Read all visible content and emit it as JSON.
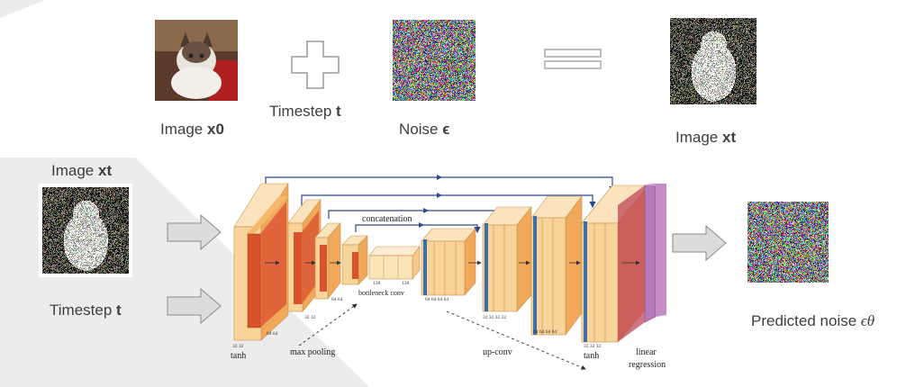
{
  "top_row": {
    "image_label_prefix": "Image ",
    "image_label_var": "x0",
    "timestep_label_prefix": "Timestep ",
    "timestep_label_var": "t",
    "noise_label_prefix": "Noise ",
    "noise_label_var": "ϵ",
    "result_label_prefix": "Image ",
    "result_label_var": "xt"
  },
  "left": {
    "input_label_prefix": "Image ",
    "input_label_var": "xt",
    "timestep_label_prefix": "Timestep ",
    "timestep_label_var": "t"
  },
  "output": {
    "label_prefix": "Predicted noise ",
    "label_var": "ϵθ"
  },
  "unet": {
    "concatenation": "concatenation",
    "bottleneck": "bottleneck conv",
    "max_pooling": "max pooling",
    "up_conv": "up-conv",
    "tanh_left": "tanh",
    "tanh_right": "tanh",
    "linear": "linear",
    "regression": "regression",
    "ch_3232_a": "32 32",
    "ch_64_64_a": "64  64",
    "ch_3232_b": "32 32",
    "ch_64_64_b": "64 64",
    "ch_128_a": "128",
    "ch_128_b": "128",
    "ch_64s": "64  64  64  64",
    "ch_3232s": "32 32 32 32",
    "ch_64s_b": "64  64  64  64",
    "ch_3232_c": "32 32 32"
  },
  "colors": {
    "bg_gray": "#ececec",
    "orange_light": "#f8d39a",
    "orange_mid": "#f0a85a",
    "red": "#d9532a",
    "blue": "#3a6fa8",
    "purple": "#b57ab8",
    "arrow_gray": "#d9d9d9"
  }
}
